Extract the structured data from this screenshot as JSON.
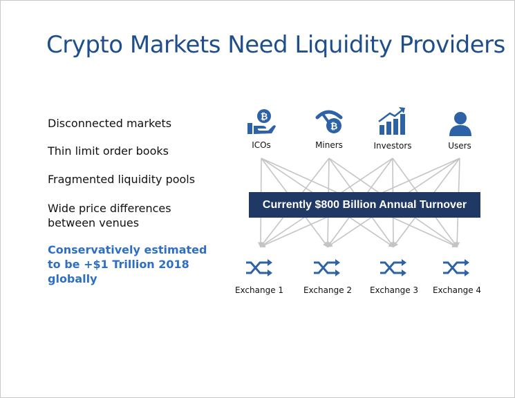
{
  "title": "Crypto Markets Need Liquidity Providers",
  "bullets": [
    "Disconnected markets",
    "Thin limit order books",
    "Fragmented liquidity pools",
    "Wide price differences between venues"
  ],
  "highlight": "Conservatively estimated to be +$1 Trillion 2018 globally",
  "sources": [
    {
      "label": "ICOs",
      "icon": "hand-bitcoin-icon"
    },
    {
      "label": "Miners",
      "icon": "pickaxe-bitcoin-icon"
    },
    {
      "label": "Investors",
      "icon": "growth-chart-icon"
    },
    {
      "label": "Users",
      "icon": "user-icon"
    }
  ],
  "exchanges": [
    {
      "label": "Exchange 1",
      "icon": "shuffle-icon"
    },
    {
      "label": "Exchange 2",
      "icon": "shuffle-icon"
    },
    {
      "label": "Exchange 3",
      "icon": "shuffle-icon"
    },
    {
      "label": "Exchange 4",
      "icon": "shuffle-icon"
    }
  ],
  "banner": "Currently $800 Billion Annual Turnover",
  "colors": {
    "title": "#1f4e8c",
    "icon": "#2e62a6",
    "highlight": "#2e6fc4",
    "banner_bg": "#1f3864",
    "connector": "#c4c4c4"
  }
}
